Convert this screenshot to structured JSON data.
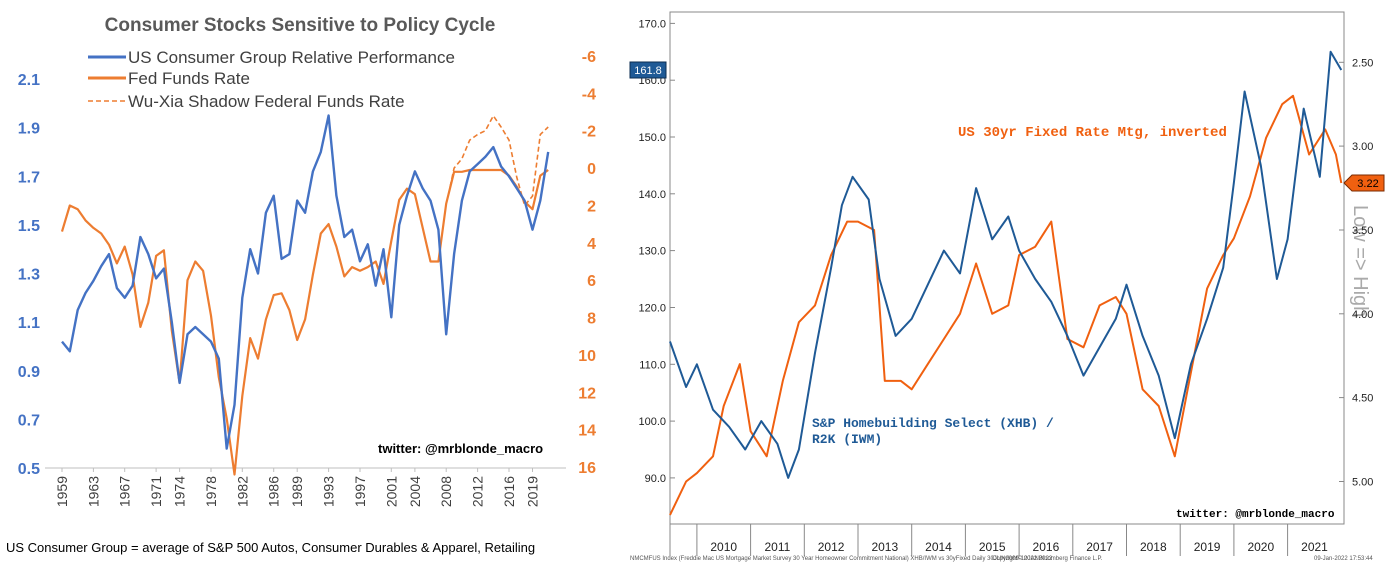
{
  "left": {
    "title": "Consumer Stocks Sensitive to Policy Cycle",
    "watermark": "twitter: @mrblonde_macro",
    "footnote": "US Consumer Group = average of S&P 500 Autos, Consumer Durables & Apparel, Retailing",
    "legend": [
      {
        "label": "US Consumer Group Relative Performance",
        "color": "#4472c4",
        "style": "solid"
      },
      {
        "label": "Fed Funds Rate",
        "color": "#ed7d31",
        "style": "solid"
      },
      {
        "label": "Wu-Xia Shadow Federal Funds Rate",
        "color": "#ed7d31",
        "style": "dashed"
      }
    ],
    "colors": {
      "blue": "#4472c4",
      "orange": "#ed7d31",
      "title": "#595959"
    }
  },
  "right": {
    "watermark": "twitter: @mrblonde_macro",
    "label_mortgage": "US 30yr Fixed Rate Mtg, inverted",
    "label_xhb_1": "S&P Homebuilding Select (XHB) /",
    "label_xhb_2": "R2K (IWM)",
    "right_axis_title": "Low => High",
    "last_left": "161.8",
    "last_right": "3.22",
    "source_left": "NMCMFUS Index (Freddie Mac US Mortgage Market Survey 30 Year Homeowner Commitment National) XHB/IWM vs 30yFixed  Daily 30JUN2009-10JAN2022",
    "source_mid": "Copyright© 2022 Bloomberg Finance L.P.",
    "source_right": "09-Jan-2022 17:53:44",
    "colors": {
      "blue": "#1f5a96",
      "orange": "#f06010"
    }
  },
  "chart_data": [
    {
      "type": "line",
      "title": "Consumer Stocks Sensitive to Policy Cycle",
      "xlabel": "",
      "ylabel": "",
      "x_ticks": [
        "1959",
        "1963",
        "1967",
        "1971",
        "1974",
        "1978",
        "1982",
        "1986",
        "1989",
        "1993",
        "1997",
        "2001",
        "2004",
        "2008",
        "2012",
        "2016",
        "2019"
      ],
      "y_left_ticks": [
        "0.5",
        "0.7",
        "0.9",
        "1.1",
        "1.3",
        "1.5",
        "1.7",
        "1.9",
        "2.1"
      ],
      "y_left_lim": [
        0.5,
        2.1
      ],
      "y_right_ticks": [
        "-6",
        "-4",
        "-2",
        "0",
        "2",
        "4",
        "6",
        "8",
        "10",
        "12",
        "14",
        "16"
      ],
      "y_right_lim": [
        -6,
        16
      ],
      "y_right_inverted": true,
      "x_lim": [
        1959,
        2022
      ],
      "legend_position": "top-left",
      "grid": false,
      "series": [
        {
          "name": "US Consumer Group Relative Performance",
          "axis": "left",
          "x": [
            1959,
            1960,
            1961,
            1962,
            1963,
            1964,
            1965,
            1966,
            1967,
            1968,
            1969,
            1970,
            1971,
            1972,
            1973,
            1974,
            1975,
            1976,
            1977,
            1978,
            1979,
            1980,
            1981,
            1982,
            1983,
            1984,
            1985,
            1986,
            1987,
            1988,
            1989,
            1990,
            1991,
            1992,
            1993,
            1994,
            1995,
            1996,
            1997,
            1998,
            1999,
            2000,
            2001,
            2002,
            2003,
            2004,
            2005,
            2006,
            2007,
            2008,
            2009,
            2010,
            2011,
            2012,
            2013,
            2014,
            2015,
            2016,
            2017,
            2018,
            2019,
            2020,
            2021
          ],
          "values": [
            1.02,
            0.98,
            1.15,
            1.22,
            1.27,
            1.33,
            1.38,
            1.24,
            1.2,
            1.25,
            1.45,
            1.38,
            1.28,
            1.32,
            1.1,
            0.85,
            1.05,
            1.08,
            1.05,
            1.02,
            0.95,
            0.58,
            0.76,
            1.2,
            1.4,
            1.3,
            1.55,
            1.62,
            1.36,
            1.38,
            1.6,
            1.55,
            1.72,
            1.8,
            1.95,
            1.62,
            1.45,
            1.48,
            1.35,
            1.42,
            1.25,
            1.4,
            1.12,
            1.5,
            1.62,
            1.72,
            1.65,
            1.6,
            1.48,
            1.05,
            1.38,
            1.6,
            1.72,
            1.75,
            1.78,
            1.82,
            1.74,
            1.7,
            1.65,
            1.6,
            1.48,
            1.6,
            1.8
          ]
        },
        {
          "name": "Fed Funds Rate",
          "axis": "right",
          "x": [
            1959,
            1960,
            1961,
            1962,
            1963,
            1964,
            1965,
            1966,
            1967,
            1968,
            1969,
            1970,
            1971,
            1972,
            1973,
            1974,
            1975,
            1976,
            1977,
            1978,
            1979,
            1980,
            1981,
            1982,
            1983,
            1984,
            1985,
            1986,
            1987,
            1988,
            1989,
            1990,
            1991,
            1992,
            1993,
            1994,
            1995,
            1996,
            1997,
            1998,
            1999,
            2000,
            2001,
            2002,
            2003,
            2004,
            2005,
            2006,
            2007,
            2008,
            2009,
            2010,
            2011,
            2012,
            2013,
            2014,
            2015,
            2016,
            2017,
            2018,
            2019,
            2020,
            2021
          ],
          "values": [
            3.4,
            2.0,
            2.2,
            2.8,
            3.2,
            3.5,
            4.1,
            5.1,
            4.2,
            5.7,
            8.5,
            7.2,
            4.7,
            4.4,
            8.7,
            11.5,
            6.0,
            5.0,
            5.5,
            7.9,
            11.2,
            13.4,
            16.4,
            12.2,
            9.1,
            10.2,
            8.1,
            6.8,
            6.7,
            7.6,
            9.2,
            8.1,
            5.7,
            3.5,
            3.0,
            4.2,
            5.8,
            5.3,
            5.5,
            5.3,
            5.0,
            6.2,
            3.9,
            1.7,
            1.1,
            1.4,
            3.2,
            5.0,
            5.0,
            1.9,
            0.2,
            0.2,
            0.1,
            0.1,
            0.1,
            0.1,
            0.1,
            0.4,
            1.0,
            1.8,
            2.2,
            0.4,
            0.1
          ]
        },
        {
          "name": "Wu-Xia Shadow Federal Funds Rate",
          "axis": "right",
          "x": [
            2008.5,
            2009,
            2010,
            2011,
            2012,
            2013,
            2014,
            2015,
            2016,
            2017,
            2018,
            2019,
            2020,
            2021
          ],
          "values": [
            1.0,
            0.0,
            -0.5,
            -1.5,
            -1.8,
            -2.0,
            -2.8,
            -2.2,
            -1.5,
            0.5,
            2.0,
            1.5,
            -1.8,
            -2.2
          ]
        }
      ]
    },
    {
      "type": "line",
      "title": "",
      "xlabel": "",
      "ylabel": "",
      "x_ticks": [
        "2010",
        "2011",
        "2012",
        "2013",
        "2014",
        "2015",
        "2016",
        "2017",
        "2018",
        "2019",
        "2020",
        "2021"
      ],
      "y_left_ticks": [
        "90.0",
        "100.0",
        "110.0",
        "120.0",
        "130.0",
        "140.0",
        "150.0",
        "160.0",
        "170.0"
      ],
      "y_left_lim": [
        84,
        172
      ],
      "y_right_ticks": [
        "2.50",
        "3.00",
        "3.50",
        "4.00",
        "4.50",
        "5.00"
      ],
      "y_right_lim": [
        2.2,
        5.2
      ],
      "y_right_inverted": true,
      "x_lim": [
        2009.5,
        2022.05
      ],
      "grid": false,
      "series": [
        {
          "name": "S&P Homebuilding Select (XHB) / R2K (IWM)",
          "axis": "left",
          "x": [
            2009.5,
            2009.8,
            2010.0,
            2010.3,
            2010.6,
            2010.9,
            2011.2,
            2011.5,
            2011.7,
            2011.9,
            2012.2,
            2012.5,
            2012.7,
            2012.9,
            2013.2,
            2013.4,
            2013.7,
            2014.0,
            2014.3,
            2014.6,
            2014.9,
            2015.2,
            2015.5,
            2015.8,
            2016.0,
            2016.3,
            2016.6,
            2016.9,
            2017.2,
            2017.5,
            2017.8,
            2018.0,
            2018.3,
            2018.6,
            2018.9,
            2019.2,
            2019.5,
            2019.8,
            2020.0,
            2020.2,
            2020.5,
            2020.8,
            2021.0,
            2021.3,
            2021.6,
            2021.8,
            2022.0
          ],
          "values": [
            114,
            106,
            110,
            102,
            99,
            95,
            100,
            96,
            90,
            95,
            112,
            127,
            138,
            143,
            139,
            125,
            115,
            118,
            124,
            130,
            126,
            141,
            132,
            136,
            130,
            125,
            121,
            115,
            108,
            113,
            118,
            124,
            115,
            108,
            97,
            110,
            118,
            127,
            142,
            158,
            145,
            125,
            132,
            155,
            143,
            165,
            161.8
          ]
        },
        {
          "name": "US 30yr Fixed Rate Mtg, inverted",
          "axis": "right",
          "x": [
            2009.5,
            2009.8,
            2010.0,
            2010.3,
            2010.5,
            2010.8,
            2011.0,
            2011.3,
            2011.6,
            2011.9,
            2012.2,
            2012.5,
            2012.8,
            2013.0,
            2013.3,
            2013.5,
            2013.8,
            2014.0,
            2014.3,
            2014.6,
            2014.9,
            2015.2,
            2015.5,
            2015.8,
            2016.0,
            2016.3,
            2016.6,
            2016.9,
            2017.2,
            2017.5,
            2017.8,
            2018.0,
            2018.3,
            2018.6,
            2018.9,
            2019.2,
            2019.5,
            2019.8,
            2020.0,
            2020.3,
            2020.6,
            2020.9,
            2021.1,
            2021.4,
            2021.7,
            2021.9,
            2022.0
          ],
          "values": [
            5.2,
            5.0,
            4.95,
            4.85,
            4.55,
            4.3,
            4.7,
            4.85,
            4.4,
            4.05,
            3.95,
            3.65,
            3.45,
            3.45,
            3.5,
            4.4,
            4.4,
            4.45,
            4.3,
            4.15,
            4.0,
            3.7,
            4.0,
            3.95,
            3.65,
            3.6,
            3.45,
            4.15,
            4.2,
            3.95,
            3.9,
            4.0,
            4.45,
            4.55,
            4.85,
            4.35,
            3.85,
            3.65,
            3.55,
            3.3,
            2.95,
            2.75,
            2.7,
            3.05,
            2.9,
            3.05,
            3.22
          ]
        }
      ]
    }
  ]
}
